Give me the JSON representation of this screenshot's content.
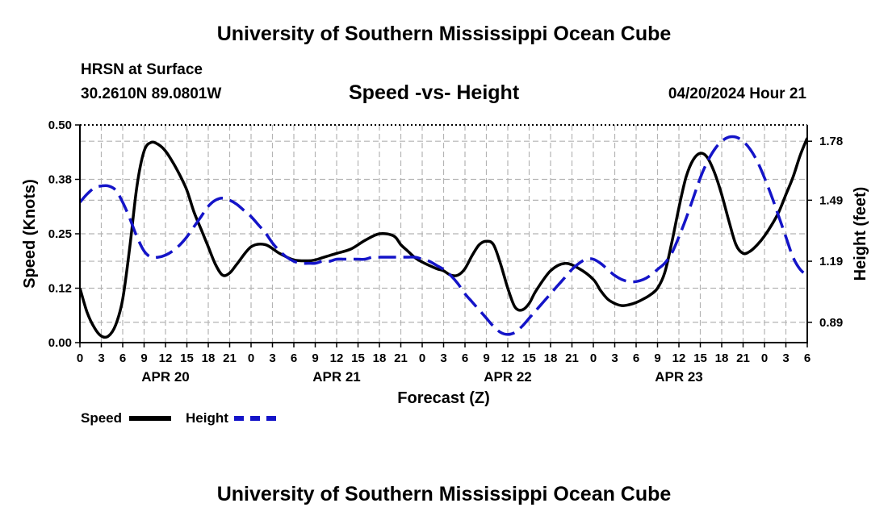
{
  "header": {
    "title": "University of Southern Mississippi Ocean Cube",
    "station": "HRSN at Surface",
    "coords": "30.2610N  89.0801W",
    "chart_title": "Speed -vs- Height",
    "datetime": "04/20/2024 Hour 21",
    "footer_title": "University of Southern Mississippi Ocean Cube"
  },
  "legend": {
    "speed_label": "Speed",
    "height_label": "Height"
  },
  "colors": {
    "speed": "#000000",
    "height": "#1414c8",
    "grid": "#b4b4b4"
  },
  "chart_data": {
    "type": "line",
    "title": "Speed -vs- Height",
    "xlabel": "Forecast (Z)",
    "ylabel": "Speed (Knots)",
    "y2label": "Height (feet)",
    "x_hours": [
      0,
      3,
      6,
      9,
      12,
      15,
      18,
      21,
      24,
      27,
      30,
      33,
      36,
      39,
      42,
      45,
      48,
      51,
      54,
      57,
      60,
      63,
      66,
      69,
      72,
      75,
      78,
      81,
      84,
      87,
      90,
      93,
      96,
      99,
      102
    ],
    "x_tick_labels": [
      "0",
      "3",
      "6",
      "9",
      "12",
      "15",
      "18",
      "21",
      "0",
      "3",
      "6",
      "9",
      "12",
      "15",
      "18",
      "21",
      "0",
      "3",
      "6",
      "9",
      "12",
      "15",
      "18",
      "21",
      "0",
      "3",
      "6",
      "9",
      "12",
      "15",
      "18",
      "21",
      "0",
      "3",
      "6"
    ],
    "date_labels": [
      {
        "label": "APR 20",
        "hour": 12
      },
      {
        "label": "APR 21",
        "hour": 36
      },
      {
        "label": "APR 22",
        "hour": 60
      },
      {
        "label": "APR 23",
        "hour": 84
      }
    ],
    "ylim": [
      0,
      0.5
    ],
    "y_ticks": [
      "0.00",
      "0.12",
      "0.25",
      "0.38",
      "0.50"
    ],
    "y_tick_values": [
      0,
      0.125,
      0.25,
      0.375,
      0.5
    ],
    "y2lim": [
      0.79,
      1.86
    ],
    "y2_ticks": [
      "0.89",
      "1.19",
      "1.49",
      "1.78"
    ],
    "y2_tick_values": [
      0.89,
      1.19,
      1.49,
      1.78
    ],
    "series": [
      {
        "name": "Speed",
        "axis": "left",
        "x": [
          0,
          1,
          2,
          3,
          4,
          5,
          6,
          7,
          8,
          9,
          10,
          11,
          12,
          13,
          14,
          15,
          16,
          17,
          18,
          19,
          20,
          21,
          22,
          24,
          26,
          28,
          30,
          32,
          33,
          34,
          35,
          36,
          38,
          40,
          42,
          44,
          45,
          46,
          47,
          48,
          50,
          51,
          52,
          53,
          54,
          55,
          56,
          57,
          58,
          59,
          60,
          61,
          62,
          63,
          64,
          66,
          68,
          70,
          72,
          73,
          74,
          75,
          76,
          77,
          78,
          79,
          80,
          81,
          82,
          83,
          84,
          85,
          86,
          87,
          88,
          89,
          90,
          91,
          92,
          93,
          94,
          95,
          96,
          97,
          98,
          99,
          100,
          101,
          102
        ],
        "values": [
          0.125,
          0.07,
          0.035,
          0.015,
          0.015,
          0.04,
          0.1,
          0.22,
          0.36,
          0.44,
          0.46,
          0.455,
          0.44,
          0.415,
          0.385,
          0.35,
          0.3,
          0.26,
          0.22,
          0.18,
          0.155,
          0.16,
          0.18,
          0.22,
          0.225,
          0.205,
          0.19,
          0.188,
          0.19,
          0.195,
          0.2,
          0.205,
          0.215,
          0.235,
          0.25,
          0.245,
          0.225,
          0.21,
          0.195,
          0.185,
          0.17,
          0.165,
          0.155,
          0.155,
          0.17,
          0.2,
          0.225,
          0.233,
          0.225,
          0.18,
          0.125,
          0.082,
          0.075,
          0.09,
          0.12,
          0.165,
          0.182,
          0.17,
          0.145,
          0.12,
          0.1,
          0.09,
          0.085,
          0.087,
          0.092,
          0.1,
          0.11,
          0.125,
          0.16,
          0.23,
          0.31,
          0.38,
          0.42,
          0.435,
          0.425,
          0.39,
          0.34,
          0.28,
          0.225,
          0.205,
          0.21,
          0.225,
          0.245,
          0.27,
          0.3,
          0.34,
          0.38,
          0.43,
          0.47
        ]
      },
      {
        "name": "Height",
        "axis": "right",
        "x": [
          0,
          1,
          2,
          3,
          4,
          5,
          6,
          7,
          8,
          9,
          10,
          11,
          12,
          13,
          14,
          15,
          16,
          17,
          18,
          19,
          20,
          21,
          22,
          23,
          24,
          25,
          26,
          27,
          28,
          29,
          30,
          31,
          32,
          33,
          34,
          35,
          36,
          37,
          38,
          39,
          40,
          41,
          42,
          43,
          44,
          45,
          46,
          47,
          48,
          49,
          50,
          51,
          52,
          53,
          54,
          55,
          56,
          57,
          58,
          59,
          60,
          61,
          62,
          63,
          64,
          65,
          66,
          67,
          68,
          69,
          70,
          71,
          72,
          73,
          74,
          75,
          76,
          77,
          78,
          79,
          80,
          81,
          82,
          83,
          84,
          85,
          86,
          87,
          88,
          89,
          90,
          91,
          92,
          93,
          94,
          95,
          96,
          97,
          98,
          99,
          100,
          101,
          102
        ],
        "values": [
          1.48,
          1.52,
          1.55,
          1.56,
          1.56,
          1.54,
          1.48,
          1.4,
          1.31,
          1.24,
          1.21,
          1.21,
          1.22,
          1.24,
          1.27,
          1.31,
          1.36,
          1.41,
          1.46,
          1.49,
          1.5,
          1.49,
          1.47,
          1.44,
          1.41,
          1.37,
          1.33,
          1.28,
          1.24,
          1.21,
          1.19,
          1.18,
          1.18,
          1.18,
          1.19,
          1.19,
          1.2,
          1.2,
          1.2,
          1.2,
          1.2,
          1.21,
          1.21,
          1.21,
          1.21,
          1.21,
          1.21,
          1.21,
          1.2,
          1.19,
          1.17,
          1.15,
          1.12,
          1.08,
          1.03,
          0.99,
          0.95,
          0.91,
          0.87,
          0.84,
          0.83,
          0.84,
          0.87,
          0.91,
          0.95,
          0.99,
          1.03,
          1.07,
          1.11,
          1.15,
          1.18,
          1.2,
          1.2,
          1.18,
          1.15,
          1.12,
          1.1,
          1.09,
          1.09,
          1.1,
          1.12,
          1.15,
          1.18,
          1.23,
          1.31,
          1.4,
          1.5,
          1.6,
          1.68,
          1.74,
          1.78,
          1.8,
          1.8,
          1.78,
          1.74,
          1.68,
          1.6,
          1.51,
          1.41,
          1.31,
          1.21,
          1.15,
          1.12
        ]
      }
    ]
  }
}
